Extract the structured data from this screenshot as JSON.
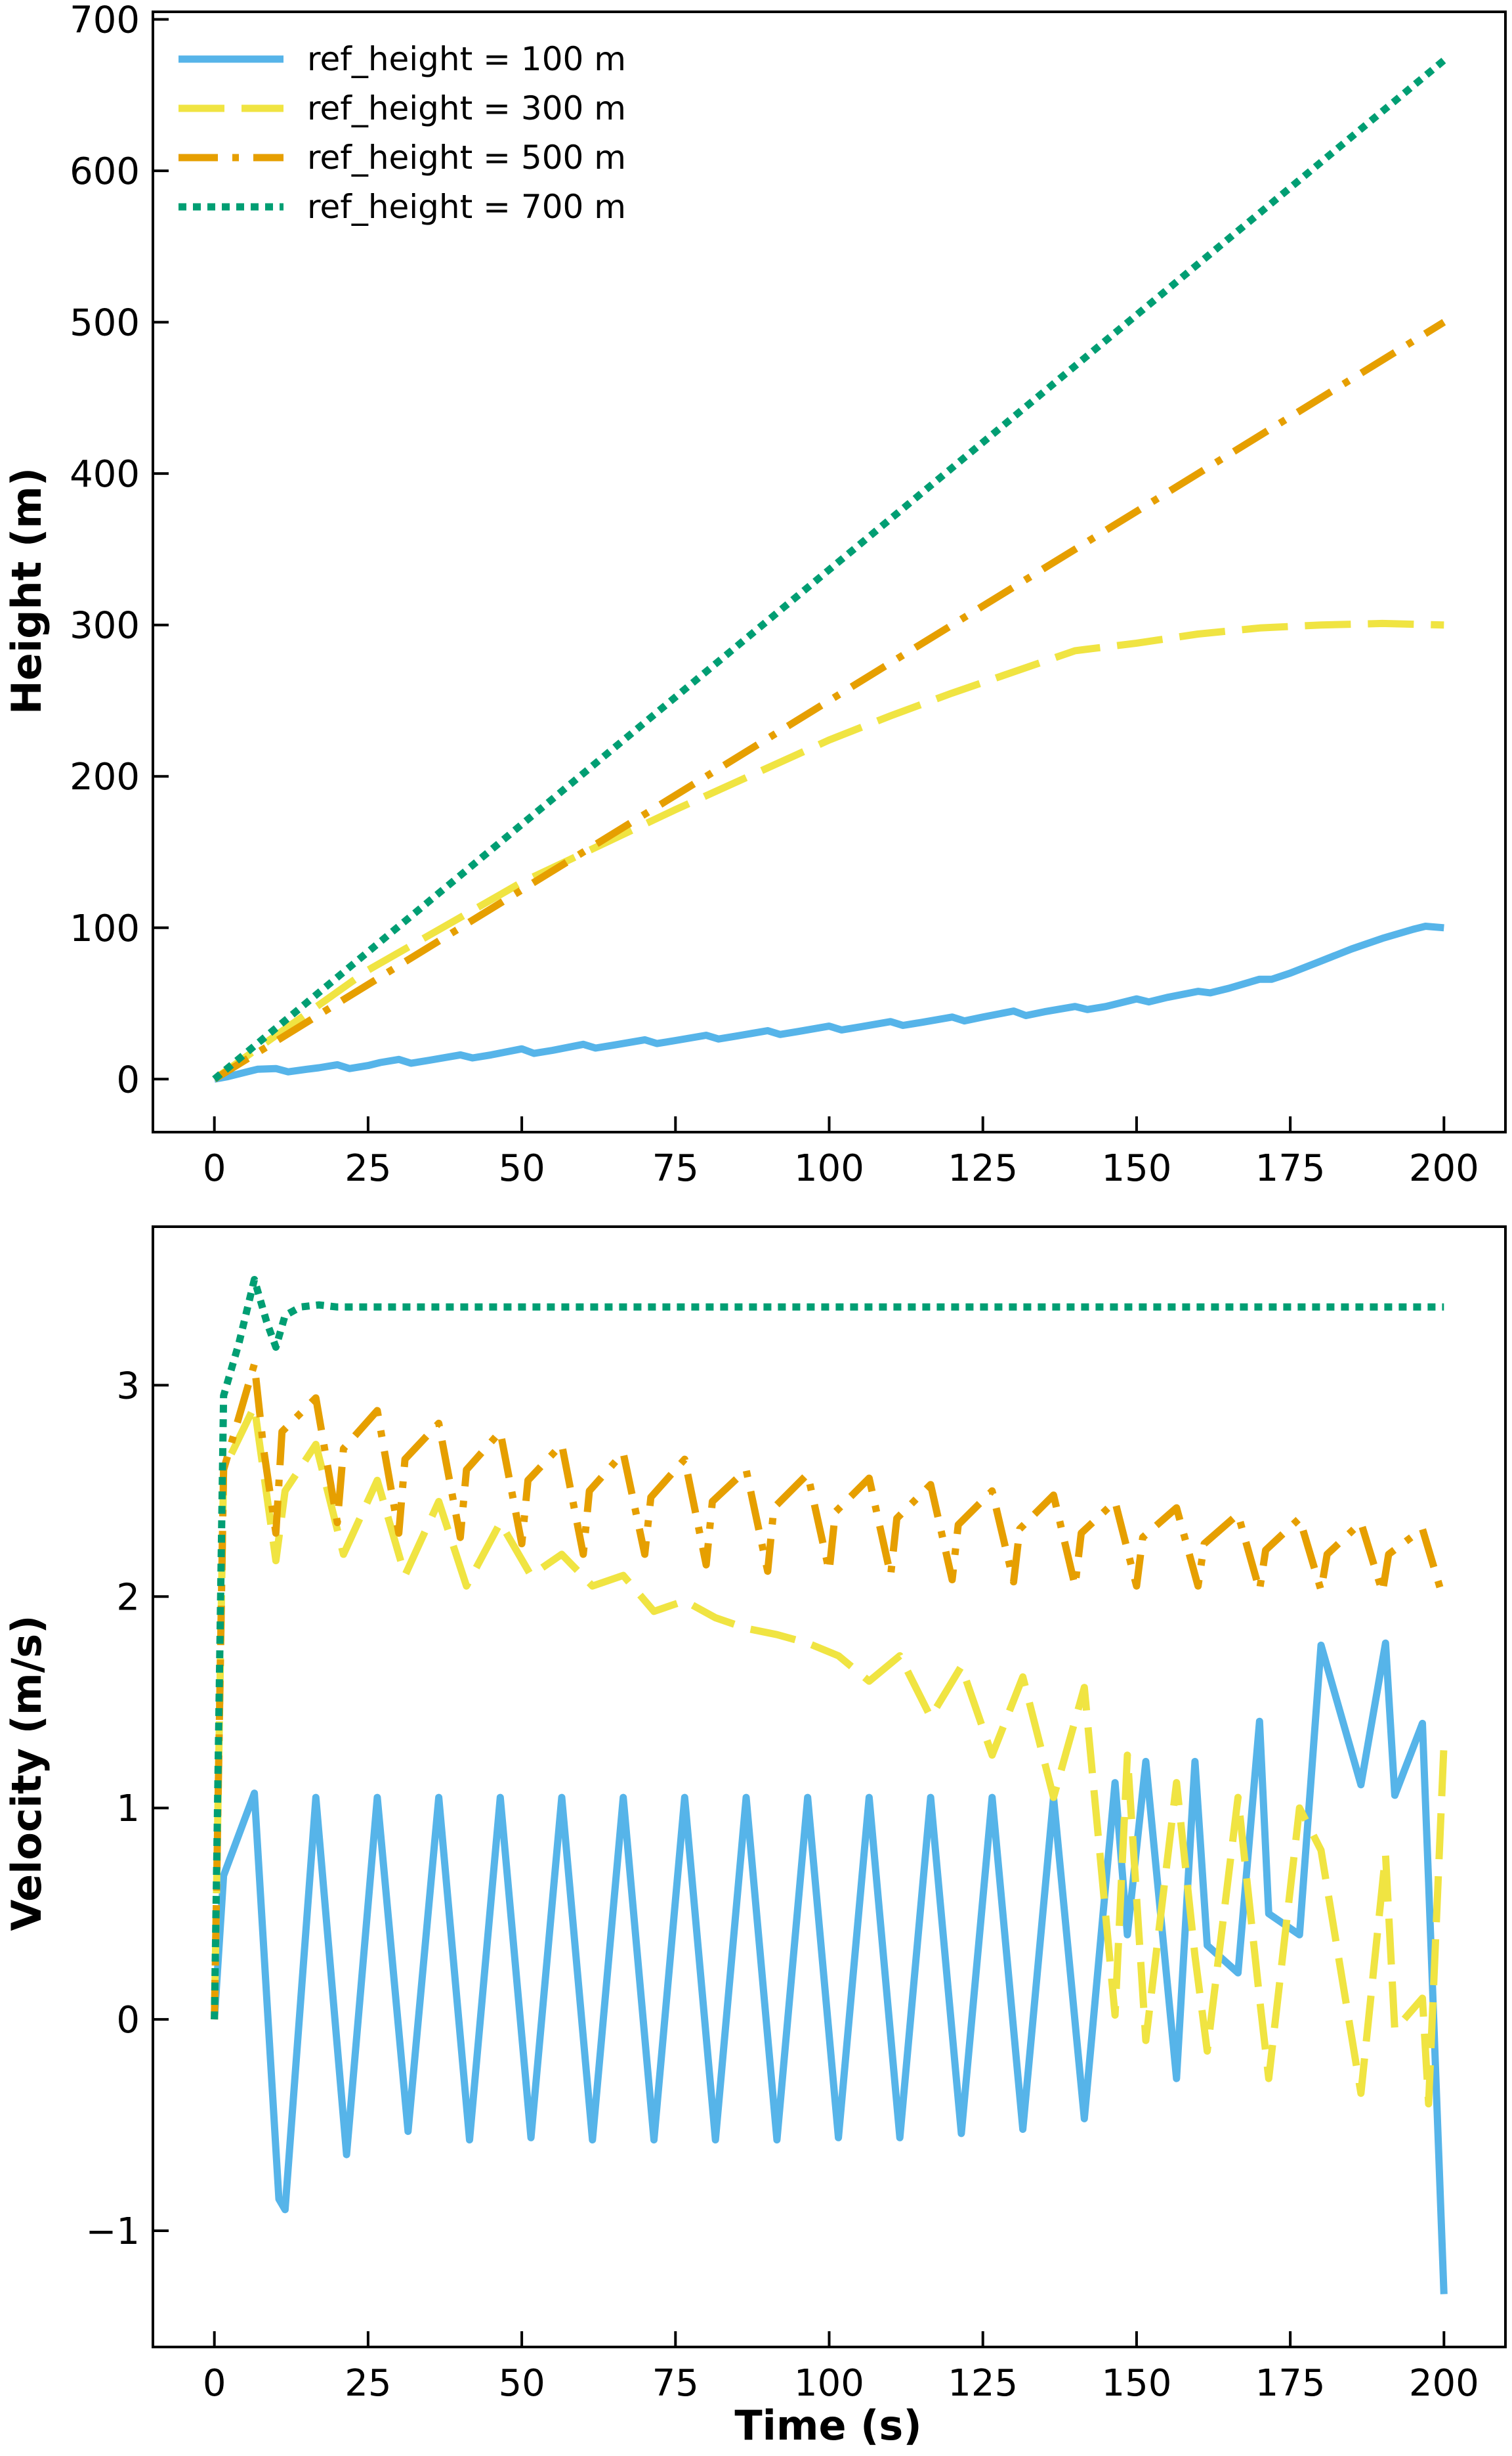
{
  "chart_data": [
    {
      "type": "line",
      "title": "",
      "xlabel": "",
      "ylabel": "Height (m)",
      "xlim": [
        -10,
        210
      ],
      "ylim": [
        -35,
        705
      ],
      "xticks": [
        0,
        25,
        50,
        75,
        100,
        125,
        150,
        175,
        200
      ],
      "xtick_labels": [
        "0",
        "25",
        "50",
        "75",
        "100",
        "125",
        "150",
        "175",
        "200"
      ],
      "yticks": [
        0,
        100,
        200,
        300,
        400,
        500,
        600,
        700
      ],
      "ytick_labels": [
        "0",
        "100",
        "200",
        "300",
        "400",
        "500",
        "600",
        "700"
      ],
      "grid": false,
      "legend_position": "top-left",
      "series": [
        {
          "name": "ref_height = 100 m",
          "color": "#56B4E9",
          "dash": "solid",
          "x": [
            0,
            2,
            5,
            7,
            10,
            12,
            15,
            17,
            20,
            22,
            25,
            27,
            30,
            32,
            35,
            40,
            42,
            45,
            50,
            52,
            55,
            60,
            62,
            65,
            70,
            72,
            75,
            80,
            82,
            85,
            90,
            92,
            95,
            100,
            102,
            105,
            110,
            112,
            115,
            120,
            122,
            125,
            130,
            132,
            135,
            140,
            142,
            145,
            150,
            152,
            155,
            160,
            162,
            165,
            170,
            172,
            175,
            180,
            185,
            190,
            195,
            197,
            200
          ],
          "y": [
            0,
            1.5,
            4.5,
            6.5,
            7,
            4.8,
            6.5,
            7.5,
            9.5,
            7,
            9,
            11,
            13,
            10.5,
            12.5,
            16,
            14,
            16,
            20,
            17,
            19,
            23,
            20.5,
            22.5,
            26,
            23.5,
            25.5,
            29,
            26.5,
            28.5,
            32,
            29.5,
            31.5,
            35,
            32.5,
            34.5,
            38,
            35.5,
            37.5,
            41,
            38.5,
            41,
            45,
            42,
            44.5,
            48,
            46,
            48,
            53,
            51,
            54,
            58,
            57,
            60,
            66,
            66,
            70,
            78,
            86,
            93,
            99,
            101,
            100
          ]
        },
        {
          "name": "ref_height = 300 m",
          "color": "#F0E442",
          "dash": "dashed",
          "x": [
            0,
            25,
            50,
            75,
            100,
            110,
            120,
            130,
            140,
            150,
            160,
            170,
            180,
            190,
            200
          ],
          "y": [
            0,
            72,
            130,
            178,
            224,
            240,
            255,
            269,
            283,
            288,
            294,
            298,
            300,
            301,
            300
          ]
        },
        {
          "name": "ref_height = 500 m",
          "color": "#E69F00",
          "dash": "dashdot",
          "x": [
            0,
            200
          ],
          "y": [
            0,
            500
          ]
        },
        {
          "name": "ref_height = 700 m",
          "color": "#009E73",
          "dash": "dotted",
          "x": [
            0,
            200
          ],
          "y": [
            0,
            673
          ]
        }
      ]
    },
    {
      "type": "line",
      "title": "",
      "xlabel": "Time (s)",
      "ylabel": "Velocity (m/s)",
      "xlim": [
        -10,
        210
      ],
      "ylim": [
        -1.55,
        3.75
      ],
      "xticks": [
        0,
        25,
        50,
        75,
        100,
        125,
        150,
        175,
        200
      ],
      "xtick_labels": [
        "0",
        "25",
        "50",
        "75",
        "100",
        "125",
        "150",
        "175",
        "200"
      ],
      "yticks": [
        -1,
        0,
        1,
        2,
        3
      ],
      "ytick_labels": [
        "−1",
        "0",
        "1",
        "2",
        "3"
      ],
      "grid": false,
      "series": [
        {
          "name": "ref_height = 100 m",
          "color": "#56B4E9",
          "dash": "solid",
          "x": [
            0,
            1.5,
            6.5,
            10.5,
            11.5,
            16.5,
            21.5,
            26.5,
            31.5,
            36.5,
            41.5,
            46.5,
            51.5,
            56.5,
            61.5,
            66.5,
            71.5,
            76.5,
            81.5,
            86.5,
            91.5,
            96.5,
            101.5,
            106.5,
            111.5,
            116.5,
            121.5,
            126.5,
            131.5,
            136.5,
            141.5,
            146.5,
            148.5,
            151.5,
            156.5,
            159.5,
            161.5,
            166.5,
            170,
            171.5,
            176.5,
            180,
            186.5,
            190.5,
            192,
            196.5,
            197.5,
            200
          ],
          "y": [
            0,
            0.68,
            1.07,
            -0.85,
            -0.9,
            1.05,
            -0.64,
            1.05,
            -0.53,
            1.05,
            -0.57,
            1.05,
            -0.56,
            1.05,
            -0.57,
            1.05,
            -0.57,
            1.05,
            -0.57,
            1.05,
            -0.57,
            1.05,
            -0.56,
            1.05,
            -0.56,
            1.05,
            -0.54,
            1.05,
            -0.52,
            1.05,
            -0.47,
            1.12,
            0.4,
            1.22,
            -0.28,
            1.22,
            0.35,
            0.22,
            1.41,
            0.5,
            0.4,
            1.77,
            1.11,
            1.78,
            1.06,
            1.4,
            0.65,
            -1.3
          ]
        },
        {
          "name": "ref_height = 300 m",
          "color": "#F0E442",
          "dash": "dashed",
          "x": [
            0,
            1.5,
            6.5,
            10,
            11.5,
            16.5,
            21,
            26.5,
            31,
            36.5,
            41,
            46.5,
            51.5,
            56.5,
            61.5,
            66.5,
            71.5,
            76.5,
            81.5,
            86.5,
            91.5,
            96.5,
            101.5,
            106.5,
            111.5,
            116.5,
            121.5,
            126.5,
            131.5,
            136.5,
            141.5,
            146.5,
            148.5,
            151.5,
            156.5,
            159.5,
            161.5,
            166.5,
            170,
            171.5,
            176.5,
            180,
            186.5,
            190.5,
            192,
            196.5,
            197.5,
            200
          ],
          "y": [
            0,
            2.6,
            2.9,
            2.17,
            2.5,
            2.72,
            2.2,
            2.55,
            2.1,
            2.45,
            2.05,
            2.35,
            2.1,
            2.2,
            2.05,
            2.1,
            1.93,
            1.98,
            1.9,
            1.85,
            1.82,
            1.78,
            1.72,
            1.6,
            1.72,
            1.43,
            1.67,
            1.25,
            1.62,
            1.05,
            1.57,
            0.02,
            1.25,
            -0.1,
            1.12,
            0.3,
            -0.15,
            1.05,
            0.1,
            -0.28,
            1.0,
            0.8,
            -0.35,
            0.78,
            -0.05,
            0.1,
            -0.4,
            1.3
          ]
        },
        {
          "name": "ref_height = 500 m",
          "color": "#E69F00",
          "dash": "dashdot",
          "x": [
            0,
            1.5,
            6.5,
            8,
            10,
            11,
            16.5,
            20,
            21,
            26.5,
            30,
            31,
            36.5,
            40,
            41,
            46.5,
            50,
            51,
            56.5,
            60,
            61,
            66.5,
            70,
            71,
            76.5,
            80,
            81,
            86.5,
            90,
            91,
            96.5,
            100,
            101,
            106.5,
            110,
            111,
            116.5,
            120,
            121,
            126.5,
            130,
            131,
            136.5,
            140,
            141,
            146.5,
            150,
            151,
            156.5,
            160,
            161,
            166.5,
            170,
            171,
            176.5,
            180,
            181,
            186.5,
            190,
            191,
            196.5,
            200
          ],
          "y": [
            0,
            2.6,
            3.1,
            2.7,
            2.3,
            2.78,
            2.94,
            2.35,
            2.7,
            2.88,
            2.3,
            2.65,
            2.82,
            2.28,
            2.6,
            2.78,
            2.25,
            2.55,
            2.72,
            2.2,
            2.5,
            2.68,
            2.2,
            2.47,
            2.65,
            2.15,
            2.45,
            2.6,
            2.12,
            2.42,
            2.58,
            2.12,
            2.4,
            2.56,
            2.1,
            2.37,
            2.53,
            2.08,
            2.34,
            2.5,
            2.07,
            2.32,
            2.48,
            2.05,
            2.3,
            2.45,
            2.05,
            2.28,
            2.42,
            2.05,
            2.25,
            2.39,
            2.03,
            2.22,
            2.37,
            2.03,
            2.2,
            2.35,
            2.02,
            2.2,
            2.32,
            1.98
          ]
        },
        {
          "name": "ref_height = 700 m",
          "color": "#009E73",
          "dash": "dotted",
          "x": [
            0,
            1.5,
            4,
            6.5,
            8.5,
            10,
            11.5,
            14,
            17,
            20,
            200
          ],
          "y": [
            0,
            2.95,
            3.2,
            3.5,
            3.3,
            3.18,
            3.33,
            3.37,
            3.38,
            3.37,
            3.37
          ]
        }
      ]
    }
  ]
}
